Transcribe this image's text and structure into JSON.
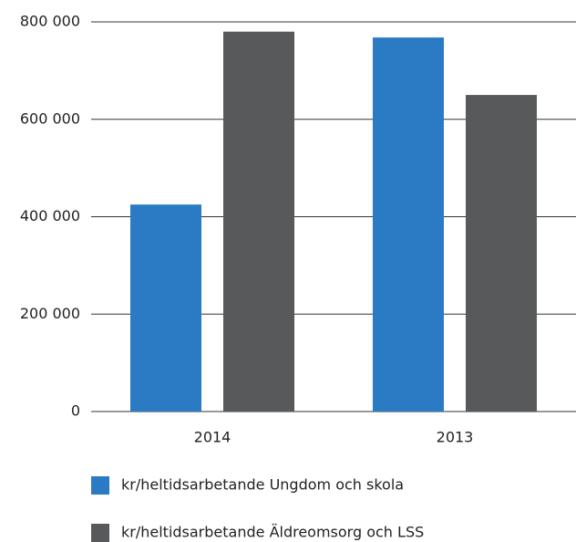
{
  "chart_data": {
    "type": "bar",
    "categories": [
      "2014",
      "2013"
    ],
    "series": [
      {
        "name": "kr/heltidsarbetande Ungdom och skola",
        "color": "#2b7bc4",
        "values": [
          425000,
          768000
        ]
      },
      {
        "name": "kr/heltidsarbetande Äldreomsorg och LSS",
        "color": "#58595b",
        "values": [
          780000,
          650000
        ]
      }
    ],
    "ylim": [
      0,
      800000
    ],
    "yticks": [
      0,
      {
        "value": 200000,
        "label": "200 000"
      },
      {
        "value": 400000,
        "label": "400 000"
      },
      {
        "value": 600000,
        "label": "600 000"
      },
      {
        "value": 800000,
        "label": "800 000"
      }
    ],
    "grid": true,
    "legend": "bottom"
  }
}
